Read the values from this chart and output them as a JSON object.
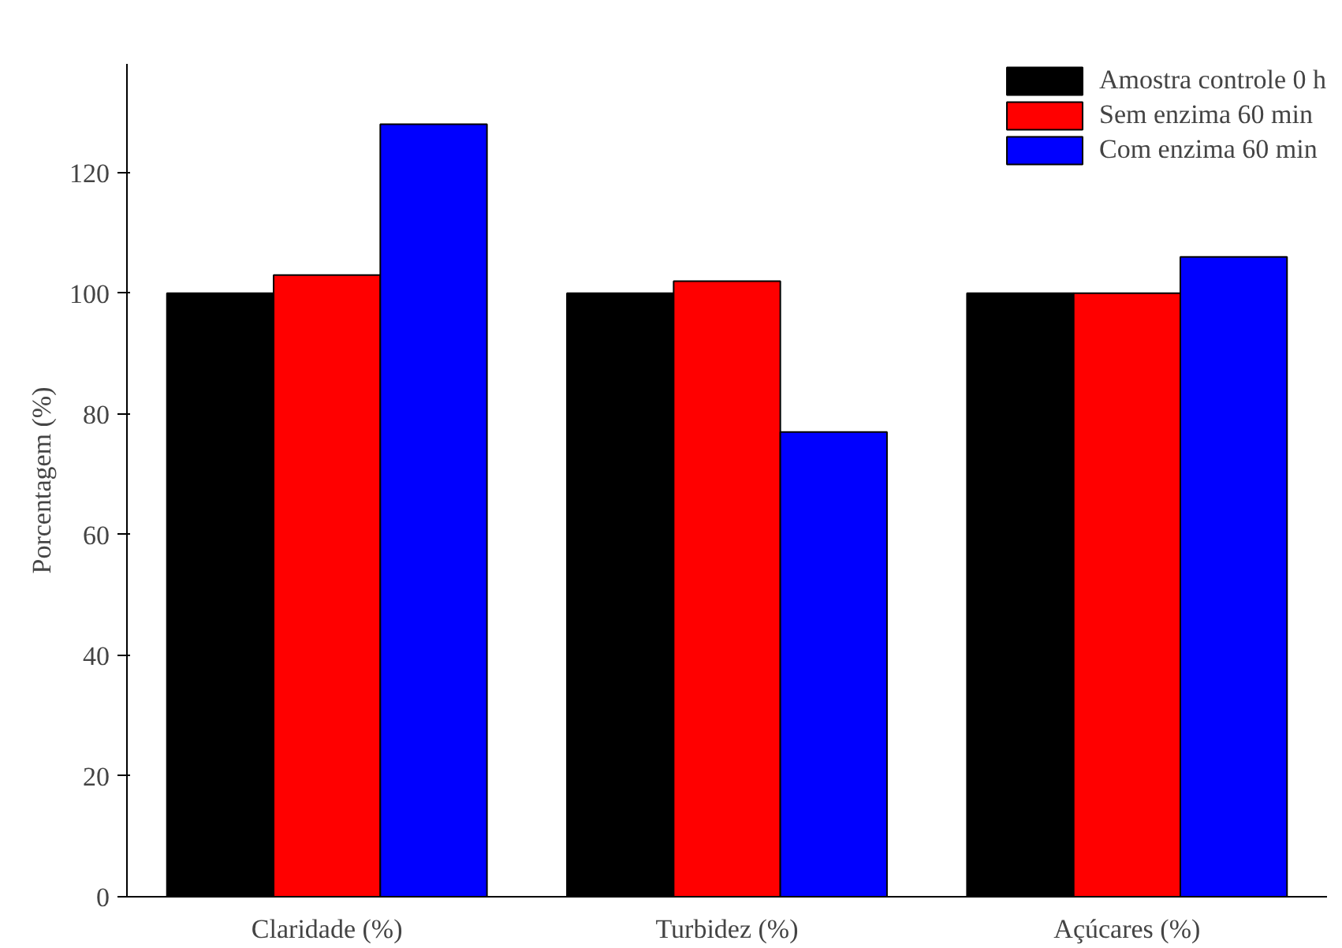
{
  "chart_data": {
    "type": "bar",
    "ylabel": "Porcentagem (%)",
    "categories": [
      "Claridade (%)",
      "Turbidez (%)",
      "Açúcares (%)"
    ],
    "series": [
      {
        "name": "Amostra controle 0 h",
        "color": "#000000",
        "values": [
          100,
          100,
          100
        ]
      },
      {
        "name": "Sem enzima 60 min",
        "color": "#ff0000",
        "values": [
          103,
          102,
          100
        ]
      },
      {
        "name": "Com enzima 60 min",
        "color": "#0000ff",
        "values": [
          128,
          77,
          106
        ]
      }
    ],
    "ylim": [
      0,
      138
    ],
    "yticks": [
      0,
      20,
      40,
      60,
      80,
      100,
      120
    ],
    "grid": false,
    "legend": "top right"
  }
}
